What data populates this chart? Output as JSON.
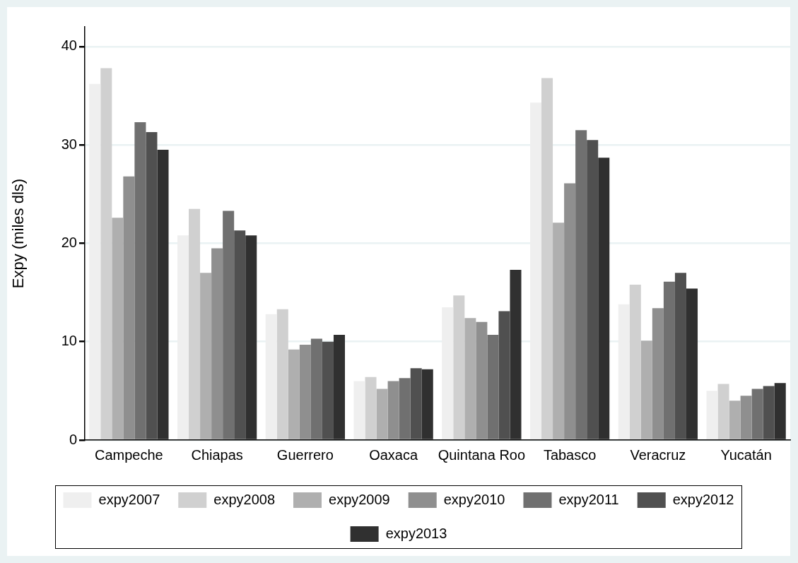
{
  "chart_data": {
    "type": "bar",
    "ylabel": "Expy (miles dls)",
    "categories": [
      "Campeche",
      "Chiapas",
      "Guerrero",
      "Oaxaca",
      "Quintana Roo",
      "Tabasco",
      "Veracruz",
      "Yucatán"
    ],
    "series": [
      {
        "name": "expy2007",
        "color": "#efefef",
        "values": [
          36.2,
          20.8,
          12.8,
          6.0,
          13.5,
          34.3,
          13.8,
          5.0
        ]
      },
      {
        "name": "expy2008",
        "color": "#d0d0d0",
        "values": [
          37.8,
          23.5,
          13.3,
          6.4,
          14.7,
          36.8,
          15.8,
          5.7
        ]
      },
      {
        "name": "expy2009",
        "color": "#afafaf",
        "values": [
          22.6,
          17.0,
          9.2,
          5.2,
          12.4,
          22.1,
          10.1,
          4.0
        ]
      },
      {
        "name": "expy2010",
        "color": "#8f8f8f",
        "values": [
          26.8,
          19.5,
          9.7,
          6.0,
          12.0,
          26.1,
          13.4,
          4.5
        ]
      },
      {
        "name": "expy2011",
        "color": "#707070",
        "values": [
          32.3,
          23.3,
          10.3,
          6.3,
          10.7,
          31.5,
          16.1,
          5.2
        ]
      },
      {
        "name": "expy2012",
        "color": "#505050",
        "values": [
          31.3,
          21.3,
          10.0,
          7.3,
          13.1,
          30.5,
          17.0,
          5.5
        ]
      },
      {
        "name": "expy2013",
        "color": "#303030",
        "values": [
          29.5,
          20.8,
          10.7,
          7.2,
          17.3,
          28.7,
          15.4,
          5.8
        ]
      }
    ],
    "ylim": [
      0,
      42
    ],
    "yticks": [
      0,
      10,
      20,
      30,
      40
    ],
    "grid": "y",
    "legend": "bottom"
  }
}
